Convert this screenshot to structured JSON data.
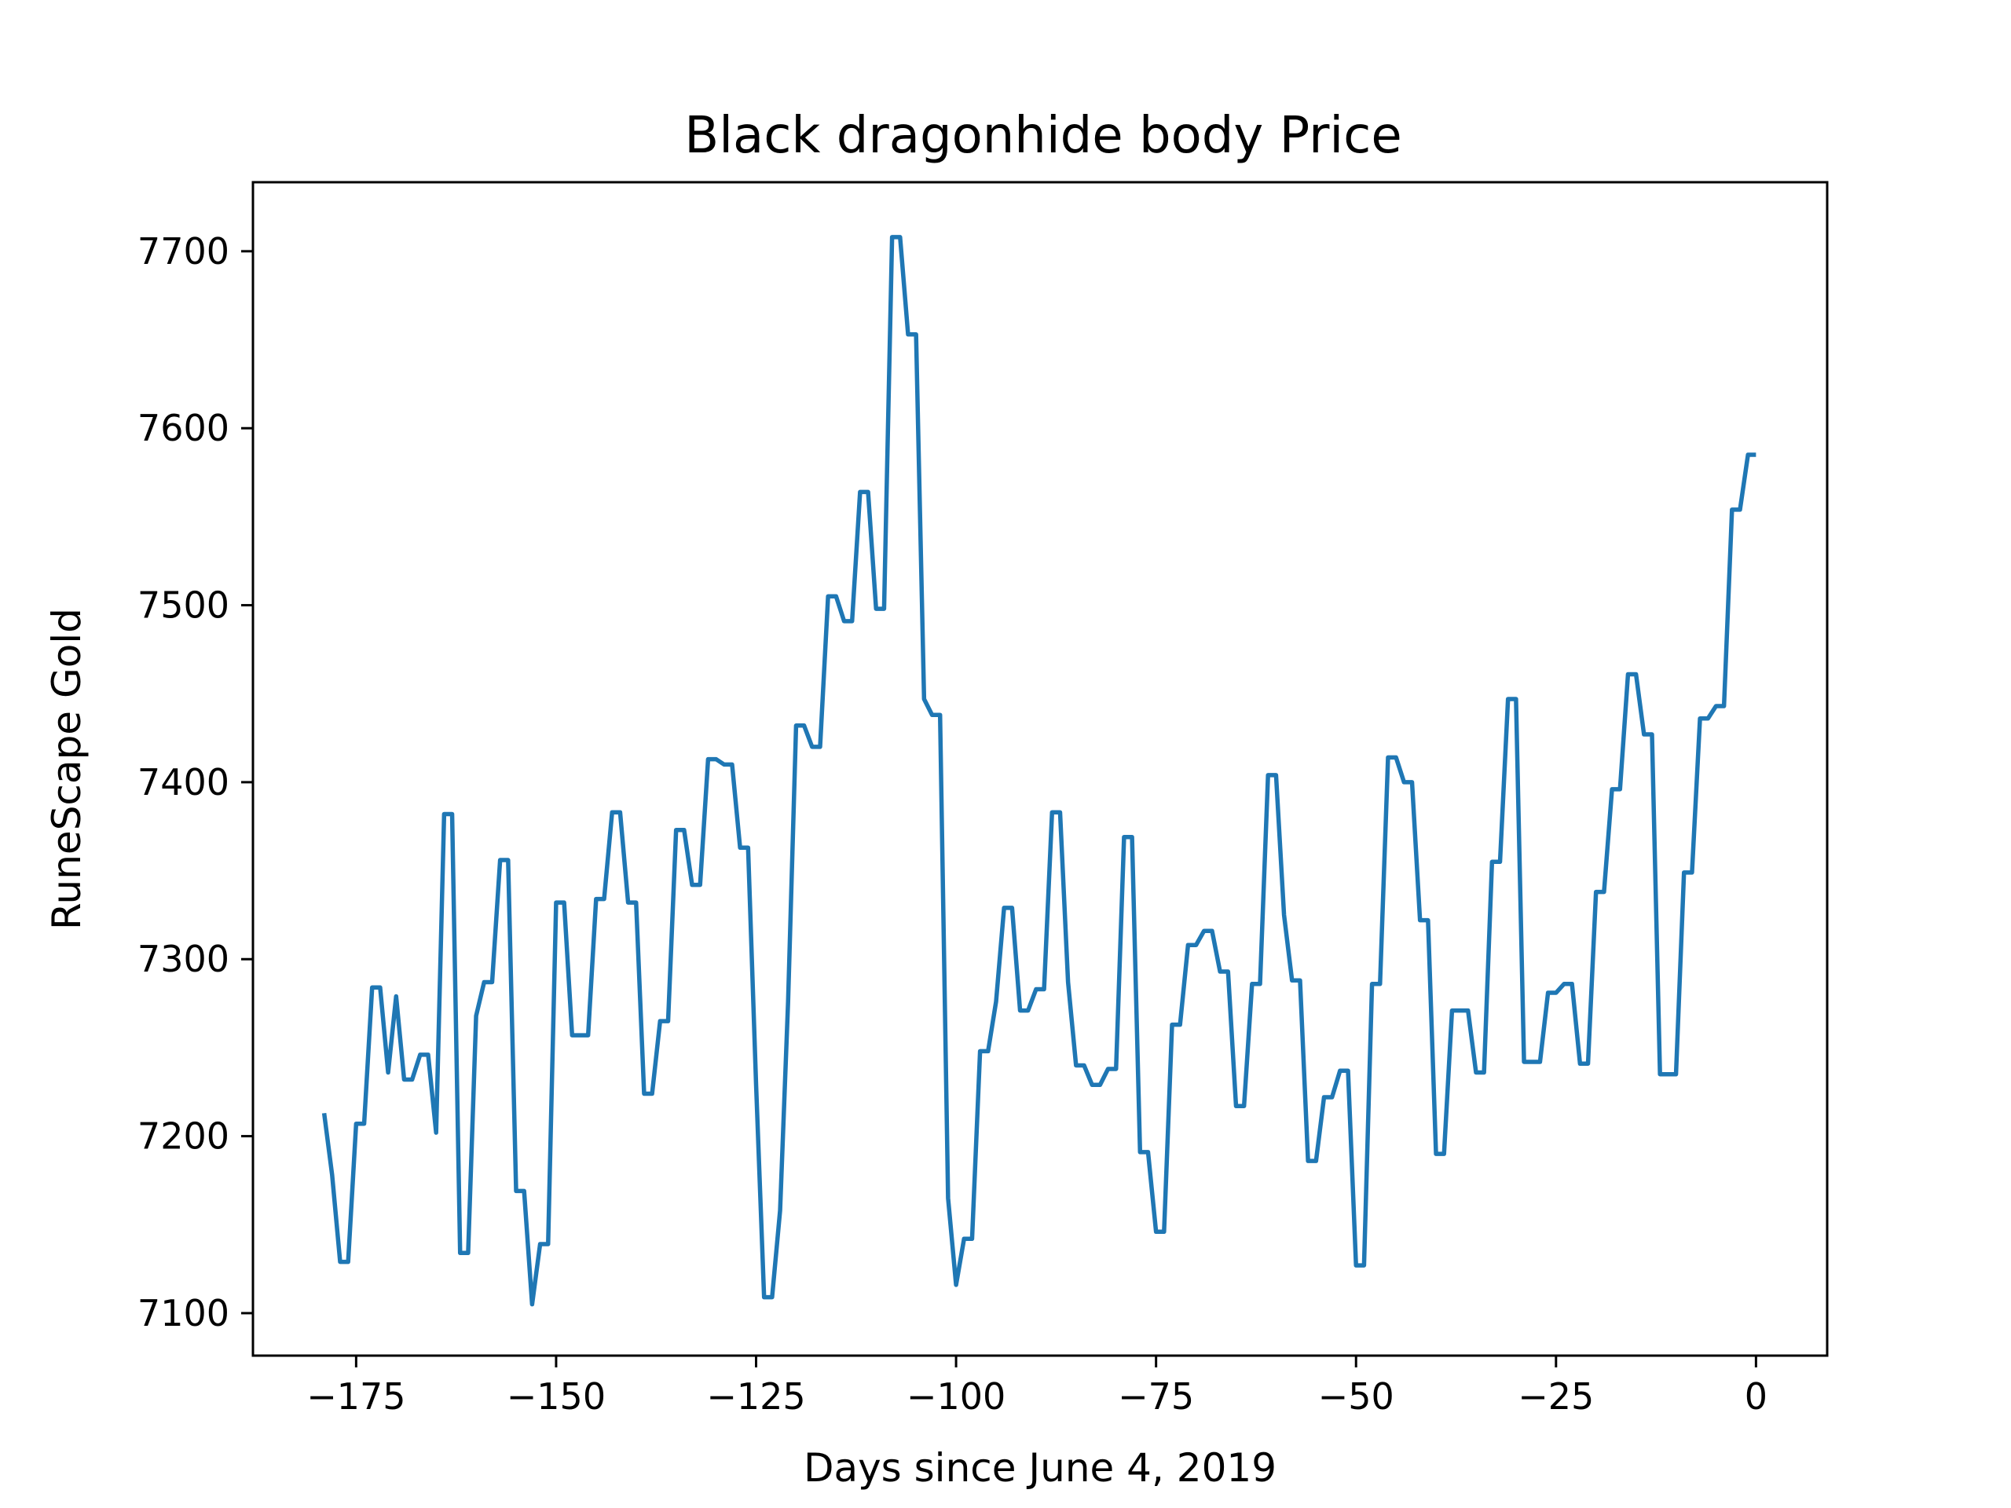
{
  "chart_data": {
    "type": "line",
    "title": "Black dragonhide body Price",
    "xlabel": "Days since June 4, 2019",
    "ylabel": "RuneScape Gold",
    "xlim": [
      -187.9,
      8.9
    ],
    "ylim": [
      7076,
      7739
    ],
    "xticks": [
      -175,
      -150,
      -125,
      -100,
      -75,
      -50,
      -25,
      0
    ],
    "xtick_labels": [
      "−175",
      "−150",
      "−125",
      "−100",
      "−75",
      "−50",
      "−25",
      "0"
    ],
    "yticks": [
      7100,
      7200,
      7300,
      7400,
      7500,
      7600,
      7700
    ],
    "ytick_labels": [
      "7100",
      "7200",
      "7300",
      "7400",
      "7500",
      "7600",
      "7700"
    ],
    "grid": false,
    "series": [
      {
        "color": "#1f77b4",
        "x": [
          -179,
          -178,
          -177,
          -176,
          -175,
          -174,
          -173,
          -172,
          -171,
          -170,
          -169,
          -168,
          -167,
          -166,
          -165,
          -164,
          -163,
          -162,
          -161,
          -160,
          -159,
          -158,
          -157,
          -156,
          -155,
          -154,
          -153,
          -152,
          -151,
          -150,
          -149,
          -148,
          -147,
          -146,
          -145,
          -144,
          -143,
          -142,
          -141,
          -140,
          -139,
          -138,
          -137,
          -136,
          -135,
          -134,
          -133,
          -132,
          -131,
          -130,
          -129,
          -128,
          -127,
          -126,
          -125,
          -124,
          -123,
          -122,
          -121,
          -120,
          -119,
          -118,
          -117,
          -116,
          -115,
          -114,
          -113,
          -112,
          -111,
          -110,
          -109,
          -108,
          -107,
          -106,
          -105,
          -104,
          -103,
          -102,
          -101,
          -100,
          -99,
          -98,
          -97,
          -96,
          -95,
          -94,
          -93,
          -92,
          -91,
          -90,
          -89,
          -88,
          -87,
          -86,
          -85,
          -84,
          -83,
          -82,
          -81,
          -80,
          -79,
          -78,
          -77,
          -76,
          -75,
          -74,
          -73,
          -72,
          -71,
          -70,
          -69,
          -68,
          -67,
          -66,
          -65,
          -64,
          -63,
          -62,
          -61,
          -60,
          -59,
          -58,
          -57,
          -56,
          -55,
          -54,
          -53,
          -52,
          -51,
          -50,
          -49,
          -48,
          -47,
          -46,
          -45,
          -44,
          -43,
          -42,
          -41,
          -40,
          -39,
          -38,
          -37,
          -36,
          -35,
          -34,
          -33,
          -32,
          -31,
          -30,
          -29,
          -28,
          -27,
          -26,
          -25,
          -24,
          -23,
          -22,
          -21,
          -20,
          -19,
          -18,
          -17,
          -16,
          -15,
          -14,
          -13,
          -12,
          -11,
          -10,
          -9,
          -8,
          -7,
          -6,
          -5,
          -4,
          -3,
          -2,
          -1,
          0
        ],
        "y": [
          7213,
          7178,
          7129,
          7129,
          7207,
          7207,
          7284,
          7284,
          7236,
          7279,
          7232,
          7232,
          7246,
          7246,
          7202,
          7382,
          7382,
          7134,
          7134,
          7268,
          7287,
          7287,
          7356,
          7356,
          7169,
          7169,
          7105,
          7139,
          7139,
          7332,
          7332,
          7257,
          7257,
          7257,
          7334,
          7334,
          7383,
          7383,
          7332,
          7332,
          7224,
          7224,
          7265,
          7265,
          7373,
          7373,
          7342,
          7342,
          7413,
          7413,
          7410,
          7410,
          7363,
          7363,
          7229,
          7109,
          7109,
          7158,
          7276,
          7432,
          7432,
          7420,
          7420,
          7505,
          7505,
          7491,
          7491,
          7564,
          7564,
          7498,
          7498,
          7708,
          7708,
          7653,
          7653,
          7447,
          7438,
          7438,
          7165,
          7116,
          7142,
          7142,
          7248,
          7248,
          7276,
          7329,
          7329,
          7271,
          7271,
          7283,
          7283,
          7383,
          7383,
          7287,
          7240,
          7240,
          7229,
          7229,
          7238,
          7238,
          7369,
          7369,
          7191,
          7191,
          7146,
          7146,
          7263,
          7263,
          7308,
          7308,
          7316,
          7316,
          7293,
          7293,
          7217,
          7217,
          7286,
          7286,
          7404,
          7404,
          7325,
          7288,
          7288,
          7186,
          7186,
          7222,
          7222,
          7237,
          7237,
          7127,
          7127,
          7286,
          7286,
          7414,
          7414,
          7400,
          7400,
          7322,
          7322,
          7190,
          7190,
          7271,
          7271,
          7271,
          7236,
          7236,
          7355,
          7355,
          7447,
          7447,
          7242,
          7242,
          7242,
          7281,
          7281,
          7286,
          7286,
          7241,
          7241,
          7338,
          7338,
          7396,
          7396,
          7461,
          7461,
          7427,
          7427,
          7235,
          7235,
          7235,
          7349,
          7349,
          7436,
          7436,
          7443,
          7443,
          7554,
          7554,
          7585,
          7585
        ]
      }
    ]
  }
}
